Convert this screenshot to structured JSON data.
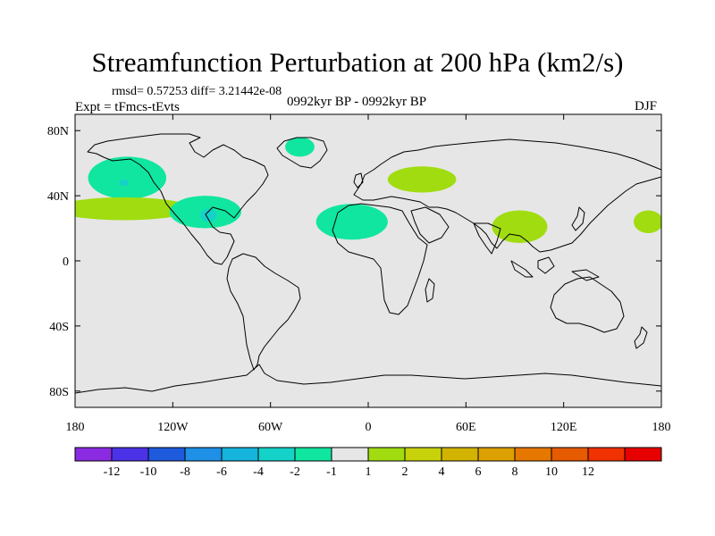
{
  "header": {
    "title": "Streamfunction Perturbation at 200 hPa (km2/s)",
    "stats": "rmsd= 0.57253 diff= 3.21442e-08",
    "experiment": "Expt = tFmcs-tEvts",
    "period": "0992kyr BP - 0992kyr BP",
    "season": "DJF"
  },
  "axes": {
    "lat_ticks": [
      {
        "lat": 80,
        "label": "80N"
      },
      {
        "lat": 40,
        "label": "40N"
      },
      {
        "lat": 0,
        "label": "0"
      },
      {
        "lat": -40,
        "label": "40S"
      },
      {
        "lat": -80,
        "label": "80S"
      }
    ],
    "lon_ticks": [
      {
        "lon": -180,
        "label": "180"
      },
      {
        "lon": -120,
        "label": "120W"
      },
      {
        "lon": -60,
        "label": "60W"
      },
      {
        "lon": 0,
        "label": "0"
      },
      {
        "lon": 60,
        "label": "60E"
      },
      {
        "lon": 120,
        "label": "120E"
      },
      {
        "lon": 180,
        "label": "180"
      }
    ],
    "lon_range": [
      -180,
      180
    ],
    "lat_range": [
      -90,
      90
    ]
  },
  "colorbar": {
    "colors": [
      "#8a2be2",
      "#4b32e6",
      "#1e5adc",
      "#1e90e6",
      "#14b4dc",
      "#14d2c8",
      "#10e6a0",
      "#e6e6e6",
      "#a0dc10",
      "#c8d20a",
      "#d2b400",
      "#dca000",
      "#e67800",
      "#e65a00",
      "#f03200",
      "#e60000"
    ],
    "labels": [
      "-12",
      "-10",
      "-8",
      "-6",
      "-4",
      "-2",
      "-1",
      "1",
      "2",
      "4",
      "6",
      "8",
      "10",
      "12"
    ]
  },
  "anomalies": [
    {
      "name": "north-pacific-negative",
      "sign": "negative",
      "level": "-1",
      "color": "#10e6a0",
      "lon": -148,
      "lat": 51,
      "rlon": 24,
      "rlat": 13
    },
    {
      "name": "north-pacific-core",
      "sign": "negative",
      "level": "-2",
      "color": "#14d2c8",
      "lon": -150,
      "lat": 48,
      "rlon": 3,
      "rlat": 2
    },
    {
      "name": "east-pacific-positive",
      "sign": "positive",
      "level": "1",
      "color": "#a0dc10",
      "lon": -150,
      "lat": 32,
      "rlon": 42,
      "rlat": 7
    },
    {
      "name": "gulf-mexico-negative",
      "sign": "negative",
      "level": "-1",
      "color": "#10e6a0",
      "lon": -100,
      "lat": 30,
      "rlon": 22,
      "rlat": 10
    },
    {
      "name": "gulf-mexico-core",
      "sign": "negative",
      "level": "-2",
      "color": "#14d2c8",
      "lon": -98,
      "lat": 28,
      "rlon": 5,
      "rlat": 4
    },
    {
      "name": "greenland-negative",
      "sign": "negative",
      "level": "-1",
      "color": "#10e6a0",
      "lon": -42,
      "lat": 70,
      "rlon": 9,
      "rlat": 6
    },
    {
      "name": "europe-positive",
      "sign": "positive",
      "level": "1",
      "color": "#a0dc10",
      "lon": 33,
      "lat": 50,
      "rlon": 21,
      "rlat": 8
    },
    {
      "name": "north-africa-negative",
      "sign": "negative",
      "level": "-1",
      "color": "#10e6a0",
      "lon": -10,
      "lat": 24,
      "rlon": 22,
      "rlat": 11
    },
    {
      "name": "tibet-positive",
      "sign": "positive",
      "level": "1",
      "color": "#a0dc10",
      "lon": 93,
      "lat": 21,
      "rlon": 17,
      "rlat": 10
    },
    {
      "name": "west-pacific-positive",
      "sign": "positive",
      "level": "1",
      "color": "#a0dc10",
      "lon": 172,
      "lat": 24,
      "rlon": 9,
      "rlat": 7
    }
  ]
}
